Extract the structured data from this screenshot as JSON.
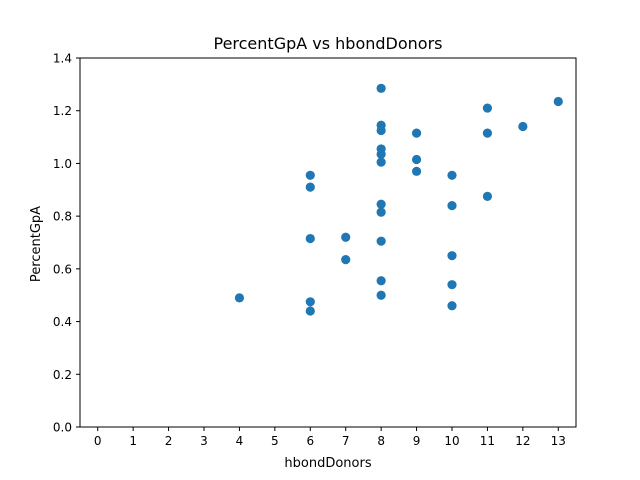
{
  "chart_data": {
    "type": "scatter",
    "title": "PercentGpA vs hbondDonors",
    "xlabel": "hbondDonors",
    "ylabel": "PercentGpA",
    "xlim": [
      -0.5,
      13.5
    ],
    "ylim": [
      0.0,
      1.4
    ],
    "xticks": [
      "0",
      "1",
      "2",
      "3",
      "4",
      "5",
      "6",
      "7",
      "8",
      "9",
      "10",
      "11",
      "12",
      "13"
    ],
    "yticks": [
      "0.0",
      "0.2",
      "0.4",
      "0.6",
      "0.8",
      "1.0",
      "1.2",
      "1.4"
    ],
    "grid": false,
    "marker_color": "#1f77b4",
    "points": [
      {
        "x": 4,
        "y": 0.49
      },
      {
        "x": 6,
        "y": 0.955
      },
      {
        "x": 6,
        "y": 0.91
      },
      {
        "x": 6,
        "y": 0.715
      },
      {
        "x": 6,
        "y": 0.475
      },
      {
        "x": 6,
        "y": 0.44
      },
      {
        "x": 7,
        "y": 0.72
      },
      {
        "x": 7,
        "y": 0.635
      },
      {
        "x": 8,
        "y": 1.285
      },
      {
        "x": 8,
        "y": 1.145
      },
      {
        "x": 8,
        "y": 1.125
      },
      {
        "x": 8,
        "y": 1.055
      },
      {
        "x": 8,
        "y": 1.035
      },
      {
        "x": 8,
        "y": 1.005
      },
      {
        "x": 8,
        "y": 0.845
      },
      {
        "x": 8,
        "y": 0.815
      },
      {
        "x": 8,
        "y": 0.705
      },
      {
        "x": 8,
        "y": 0.555
      },
      {
        "x": 8,
        "y": 0.5
      },
      {
        "x": 9,
        "y": 1.115
      },
      {
        "x": 9,
        "y": 1.015
      },
      {
        "x": 9,
        "y": 0.97
      },
      {
        "x": 10,
        "y": 0.955
      },
      {
        "x": 10,
        "y": 0.84
      },
      {
        "x": 10,
        "y": 0.65
      },
      {
        "x": 10,
        "y": 0.54
      },
      {
        "x": 10,
        "y": 0.46
      },
      {
        "x": 11,
        "y": 1.21
      },
      {
        "x": 11,
        "y": 1.115
      },
      {
        "x": 11,
        "y": 0.875
      },
      {
        "x": 12,
        "y": 1.14
      },
      {
        "x": 13,
        "y": 1.235
      }
    ]
  }
}
